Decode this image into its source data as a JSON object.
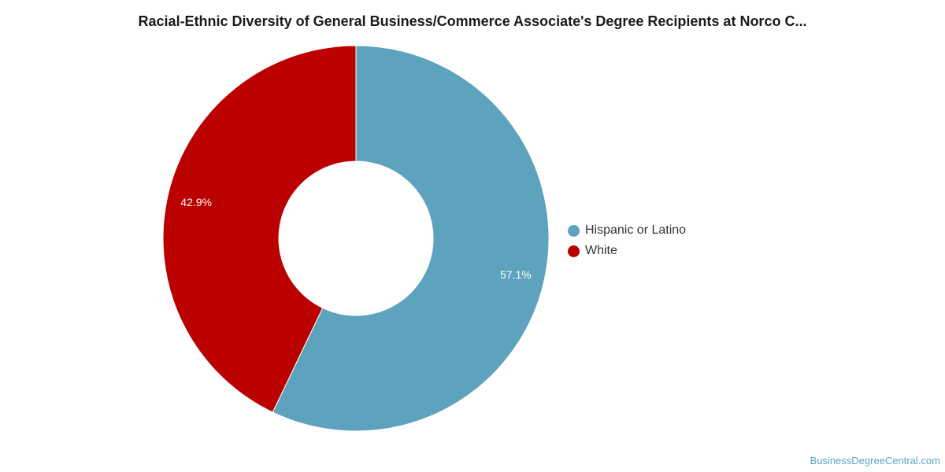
{
  "chart_data": {
    "type": "pie",
    "title": "Racial-Ethnic Diversity of General Business/Commerce Associate's Degree Recipients at Norco C...",
    "slices": [
      {
        "label": "Hispanic or Latino",
        "value": 57.1,
        "value_label": "57.1%",
        "color": "#5ea3be"
      },
      {
        "label": "White",
        "value": 42.9,
        "value_label": "42.9%",
        "color": "#bb0000"
      }
    ],
    "donut": true,
    "legend_position": "right"
  },
  "watermark": "BusinessDegreeCentral.com"
}
